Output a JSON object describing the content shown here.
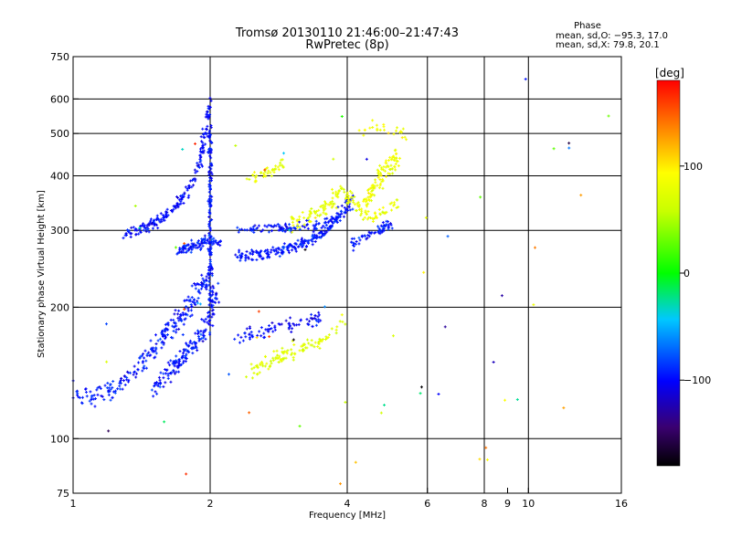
{
  "header": {
    "title_line1": "Tromsø 20130110 21:46:00–21:47:43",
    "title_line2": "RwPretec (8p)"
  },
  "phase_box": {
    "title": "Phase",
    "line_o": "mean, sd,O: −95.3, 17.0",
    "line_x": "mean, sd,X:  79.8, 20.1"
  },
  "chart_data": {
    "type": "scatter",
    "xlabel": "Frequency [MHz]",
    "ylabel": "Stationary phase Virtual Height [km]",
    "x_scale": "log",
    "y_scale": "log",
    "xlim": [
      1,
      16
    ],
    "ylim": [
      75,
      750
    ],
    "x_ticks": [
      1,
      2,
      4,
      6,
      8,
      9,
      10,
      16
    ],
    "x_tick_labels": [
      "1",
      "2",
      "4",
      "6",
      "8",
      "9",
      "10",
      "16"
    ],
    "x_gridlines": [
      2,
      4,
      6,
      8,
      10
    ],
    "y_ticks": [
      75,
      100,
      200,
      300,
      400,
      500,
      600,
      750
    ],
    "y_tick_labels": [
      "75",
      "100",
      "200",
      "300",
      "400",
      "500",
      "600",
      "750"
    ],
    "y_gridlines": [
      100,
      200,
      300,
      400,
      500,
      600
    ],
    "grid": true,
    "colorbar": {
      "label": "[deg]",
      "ticks": [
        100,
        0,
        -100
      ],
      "tick_labels": [
        "100",
        "0",
        "−100"
      ],
      "range": [
        -180,
        180
      ]
    },
    "traces": [
      {
        "mode": "O",
        "color_value": -95,
        "path": [
          [
            1.0,
            130
          ],
          [
            1.1,
            125
          ],
          [
            1.2,
            128
          ],
          [
            1.3,
            135
          ],
          [
            1.4,
            145
          ],
          [
            1.5,
            160
          ],
          [
            1.6,
            175
          ],
          [
            1.7,
            185
          ],
          [
            1.8,
            200
          ],
          [
            1.9,
            220
          ],
          [
            2.0,
            240
          ]
        ],
        "spread": 0.08,
        "n": 260
      },
      {
        "mode": "O",
        "color_value": -95,
        "path": [
          [
            1.5,
            130
          ],
          [
            1.6,
            140
          ],
          [
            1.7,
            150
          ],
          [
            1.8,
            160
          ],
          [
            1.9,
            170
          ],
          [
            2.0,
            190
          ],
          [
            2.05,
            220
          ]
        ],
        "spread": 0.07,
        "n": 180
      },
      {
        "mode": "O",
        "color_value": -100,
        "path": [
          [
            1.3,
            295
          ],
          [
            1.4,
            300
          ],
          [
            1.5,
            310
          ],
          [
            1.6,
            325
          ],
          [
            1.7,
            345
          ],
          [
            1.8,
            375
          ],
          [
            1.9,
            430
          ],
          [
            1.95,
            500
          ],
          [
            2.0,
            600
          ]
        ],
        "spread": 0.04,
        "n": 200
      },
      {
        "mode": "O",
        "color_value": -95,
        "path": [
          [
            2.0,
            200
          ],
          [
            2.0,
            300
          ],
          [
            2.0,
            400
          ],
          [
            2.0,
            520
          ]
        ],
        "spread": 0.03,
        "n": 140
      },
      {
        "mode": "O",
        "color_value": -95,
        "path": [
          [
            1.7,
            270
          ],
          [
            1.8,
            275
          ],
          [
            1.9,
            280
          ],
          [
            2.0,
            285
          ],
          [
            2.1,
            280
          ]
        ],
        "spread": 0.04,
        "n": 90
      },
      {
        "mode": "O",
        "color_value": -95,
        "path": [
          [
            2.3,
            262
          ],
          [
            2.6,
            265
          ],
          [
            2.9,
            270
          ],
          [
            3.2,
            280
          ],
          [
            3.5,
            295
          ],
          [
            3.8,
            320
          ],
          [
            4.1,
            350
          ]
        ],
        "spread": 0.05,
        "n": 230
      },
      {
        "mode": "O",
        "color_value": -95,
        "path": [
          [
            2.3,
            300
          ],
          [
            2.7,
            302
          ],
          [
            3.1,
            305
          ],
          [
            3.5,
            310
          ],
          [
            3.9,
            320
          ]
        ],
        "spread": 0.04,
        "n": 100
      },
      {
        "mode": "O",
        "color_value": -100,
        "path": [
          [
            2.3,
            170
          ],
          [
            2.6,
            175
          ],
          [
            2.9,
            180
          ],
          [
            3.2,
            185
          ],
          [
            3.5,
            188
          ]
        ],
        "spread": 0.05,
        "n": 80
      },
      {
        "mode": "O",
        "color_value": -95,
        "path": [
          [
            4.1,
            280
          ],
          [
            4.4,
            290
          ],
          [
            4.7,
            300
          ],
          [
            5.0,
            310
          ]
        ],
        "spread": 0.04,
        "n": 60
      },
      {
        "mode": "X",
        "color_value": 80,
        "path": [
          [
            2.3,
            410
          ],
          [
            2.5,
            395
          ],
          [
            2.7,
            410
          ],
          [
            2.9,
            430
          ]
        ],
        "spread": 0.04,
        "n": 40
      },
      {
        "mode": "X",
        "color_value": 75,
        "path": [
          [
            2.4,
            140
          ],
          [
            2.6,
            148
          ],
          [
            2.8,
            152
          ],
          [
            3.0,
            158
          ],
          [
            3.3,
            163
          ],
          [
            3.6,
            170
          ],
          [
            3.9,
            185
          ]
        ],
        "spread": 0.06,
        "n": 110
      },
      {
        "mode": "X",
        "color_value": 80,
        "path": [
          [
            3.0,
            310
          ],
          [
            3.3,
            320
          ],
          [
            3.6,
            340
          ],
          [
            3.9,
            370
          ],
          [
            4.2,
            340
          ],
          [
            4.5,
            320
          ],
          [
            4.8,
            330
          ],
          [
            5.2,
            350
          ]
        ],
        "spread": 0.06,
        "n": 150
      },
      {
        "mode": "X",
        "color_value": 85,
        "path": [
          [
            4.4,
            350
          ],
          [
            4.6,
            380
          ],
          [
            4.8,
            410
          ],
          [
            5.0,
            430
          ],
          [
            5.2,
            440
          ]
        ],
        "spread": 0.07,
        "n": 100
      },
      {
        "mode": "X",
        "color_value": 90,
        "path": [
          [
            4.3,
            500
          ],
          [
            4.6,
            520
          ],
          [
            5.0,
            510
          ],
          [
            5.4,
            490
          ]
        ],
        "spread": 0.05,
        "n": 25
      }
    ],
    "noise": {
      "n": 60,
      "xlim": [
        1,
        15
      ],
      "ylim": [
        78,
        700
      ]
    }
  }
}
